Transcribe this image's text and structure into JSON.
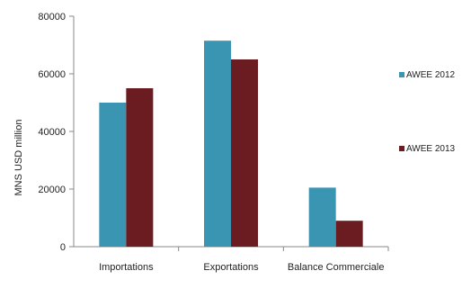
{
  "chart_data": {
    "type": "bar",
    "title": "",
    "xlabel": "",
    "ylabel": "MNS USD million",
    "categories": [
      "Importations",
      "Exportations",
      "Balance Commerciale"
    ],
    "series": [
      {
        "name": "AWEE 2012",
        "values": [
          50000,
          71500,
          20500
        ],
        "color": "#3a95b3"
      },
      {
        "name": "AWEE 2013",
        "values": [
          55000,
          65000,
          9000
        ],
        "color": "#6b1c21"
      }
    ],
    "ylim": [
      0,
      80000
    ],
    "yticks": [
      "0",
      "20000",
      "40000",
      "60000",
      "80000"
    ],
    "grid": false,
    "legend_position": "right"
  }
}
